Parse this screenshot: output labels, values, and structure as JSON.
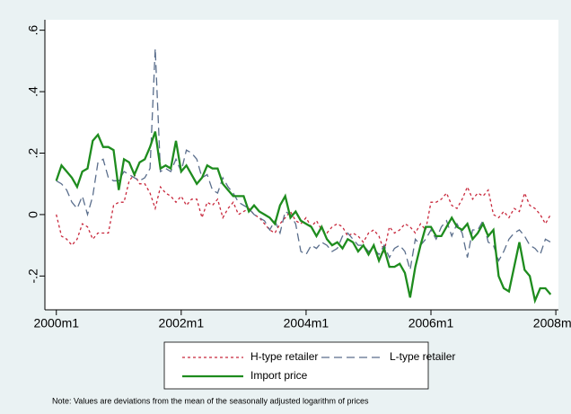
{
  "chart_data": {
    "type": "line",
    "x": [
      480,
      481,
      482,
      483,
      484,
      485,
      486,
      487,
      488,
      489,
      490,
      491,
      492,
      493,
      494,
      495,
      496,
      497,
      498,
      499,
      500,
      501,
      502,
      503,
      504,
      505,
      506,
      507,
      508,
      509,
      510,
      511,
      512,
      513,
      514,
      515,
      516,
      517,
      518,
      519,
      520,
      521,
      522,
      523,
      524,
      525,
      526,
      527,
      528,
      529,
      530,
      531,
      532,
      533,
      534,
      535,
      536,
      537,
      538,
      539,
      540,
      541,
      542,
      543,
      544,
      545,
      546,
      547,
      548,
      549,
      550,
      551,
      552,
      553,
      554,
      555,
      556,
      557,
      558,
      559,
      560,
      561,
      562,
      563,
      564,
      565,
      566,
      567,
      568,
      569,
      570,
      571,
      572,
      573,
      574,
      575
    ],
    "series": [
      {
        "name": "H-type retailer",
        "color": "#c8283c",
        "style": "dotted",
        "values": [
          0.0,
          -0.07,
          -0.08,
          -0.1,
          -0.08,
          -0.03,
          -0.04,
          -0.08,
          -0.06,
          -0.06,
          -0.06,
          0.03,
          0.04,
          0.04,
          0.11,
          0.13,
          0.1,
          0.1,
          0.07,
          0.02,
          0.09,
          0.07,
          0.06,
          0.04,
          0.06,
          0.03,
          0.05,
          0.05,
          -0.01,
          0.04,
          0.03,
          0.05,
          -0.01,
          0.02,
          0.04,
          0.0,
          0.01,
          0.02,
          0.0,
          -0.01,
          -0.03,
          -0.05,
          -0.06,
          -0.03,
          -0.01,
          0.01,
          -0.02,
          -0.03,
          -0.01,
          -0.04,
          -0.02,
          -0.05,
          -0.06,
          -0.04,
          -0.03,
          -0.04,
          -0.07,
          -0.06,
          -0.07,
          -0.09,
          -0.06,
          -0.05,
          -0.07,
          -0.12,
          -0.04,
          -0.06,
          -0.05,
          -0.03,
          -0.04,
          -0.06,
          -0.03,
          -0.05,
          0.04,
          0.04,
          0.05,
          0.07,
          0.03,
          0.02,
          0.05,
          0.09,
          0.05,
          0.07,
          0.06,
          0.08,
          0.0,
          -0.01,
          0.01,
          -0.01,
          0.02,
          0.01,
          0.07,
          0.03,
          0.02,
          0.0,
          -0.03,
          0.0
        ]
      },
      {
        "name": "L-type retailer",
        "color": "#5a6e8c",
        "style": "dashed",
        "values": [
          0.11,
          0.1,
          0.08,
          0.04,
          0.02,
          0.06,
          0.0,
          0.06,
          0.17,
          0.18,
          0.12,
          0.11,
          0.11,
          0.14,
          0.13,
          0.12,
          0.11,
          0.12,
          0.15,
          0.54,
          0.14,
          0.15,
          0.14,
          0.18,
          0.14,
          0.21,
          0.2,
          0.18,
          0.12,
          0.13,
          0.08,
          0.07,
          0.12,
          0.09,
          0.07,
          0.04,
          0.03,
          0.02,
          0.0,
          -0.01,
          -0.02,
          -0.05,
          -0.02,
          -0.06,
          0.01,
          0.0,
          -0.03,
          -0.12,
          -0.13,
          -0.1,
          -0.11,
          -0.09,
          -0.1,
          -0.12,
          -0.11,
          -0.07,
          -0.06,
          -0.08,
          -0.1,
          -0.1,
          -0.12,
          -0.11,
          -0.13,
          -0.1,
          -0.14,
          -0.11,
          -0.1,
          -0.12,
          -0.18,
          -0.08,
          -0.1,
          -0.08,
          -0.05,
          -0.08,
          -0.04,
          -0.02,
          -0.07,
          -0.03,
          -0.06,
          -0.14,
          -0.05,
          -0.05,
          -0.02,
          -0.09,
          -0.1,
          -0.15,
          -0.12,
          -0.08,
          -0.06,
          -0.05,
          -0.07,
          -0.1,
          -0.11,
          -0.13,
          -0.08,
          -0.09
        ]
      },
      {
        "name": "Import price",
        "color": "#1e8c1e",
        "style": "solid",
        "values": [
          0.11,
          0.16,
          0.14,
          0.12,
          0.09,
          0.14,
          0.15,
          0.24,
          0.26,
          0.22,
          0.22,
          0.21,
          0.08,
          0.18,
          0.17,
          0.13,
          0.17,
          0.18,
          0.22,
          0.27,
          0.15,
          0.16,
          0.15,
          0.24,
          0.14,
          0.16,
          0.13,
          0.1,
          0.12,
          0.16,
          0.15,
          0.15,
          0.1,
          0.08,
          0.06,
          0.06,
          0.06,
          0.01,
          0.03,
          0.01,
          0.0,
          -0.01,
          -0.03,
          0.03,
          0.06,
          -0.01,
          0.01,
          -0.02,
          -0.03,
          -0.04,
          -0.07,
          -0.04,
          -0.08,
          -0.1,
          -0.09,
          -0.11,
          -0.08,
          -0.09,
          -0.12,
          -0.1,
          -0.13,
          -0.1,
          -0.15,
          -0.11,
          -0.17,
          -0.17,
          -0.16,
          -0.19,
          -0.27,
          -0.17,
          -0.1,
          -0.04,
          -0.04,
          -0.07,
          -0.07,
          -0.04,
          -0.01,
          -0.04,
          -0.05,
          -0.03,
          -0.08,
          -0.06,
          -0.03,
          -0.07,
          -0.05,
          -0.2,
          -0.24,
          -0.25,
          -0.17,
          -0.09,
          -0.18,
          -0.2,
          -0.28,
          -0.24,
          -0.24,
          -0.26
        ]
      }
    ],
    "xlim": [
      477.8,
      576.5
    ],
    "xticks": [
      {
        "value": 480,
        "label": "2000m1"
      },
      {
        "value": 504,
        "label": "2002m1"
      },
      {
        "value": 528,
        "label": "2004m1"
      },
      {
        "value": 552,
        "label": "2006m1"
      },
      {
        "value": 576,
        "label": "2008m1"
      }
    ],
    "ylim": [
      -0.31,
      0.634
    ],
    "yticks": [
      {
        "value": -0.2,
        "label": "-.2"
      },
      0,
      {
        "value": 0.2,
        "label": ".2"
      },
      {
        "value": 0.4,
        "label": ".4"
      },
      {
        "value": 0.6,
        "label": ".6"
      }
    ],
    "note": "Note: Values are deviations from the mean of the seasonally adjusted logarithm of prices"
  }
}
